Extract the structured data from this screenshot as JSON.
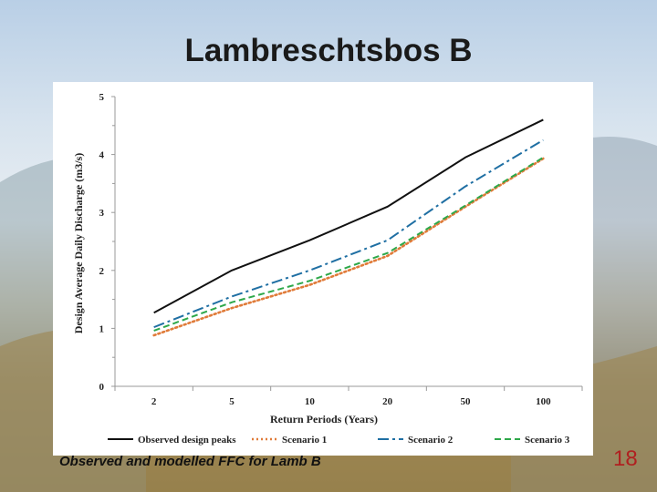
{
  "slide": {
    "title": "Lambreschtsbos B",
    "caption": "Observed and modelled FFC for Lamb B",
    "page_number": "18"
  },
  "chart_data": {
    "type": "line",
    "title": "",
    "xlabel": "Return Periods (Years)",
    "ylabel": "Design Average  Daily Discharge (m3/s)",
    "categories": [
      "2",
      "5",
      "10",
      "20",
      "50",
      "100"
    ],
    "ylim": [
      0,
      5
    ],
    "yticks": [
      "0",
      "1",
      "2",
      "3",
      "4",
      "5"
    ],
    "series": [
      {
        "name": "Observed design peaks",
        "values": [
          1.27,
          2.0,
          2.52,
          3.1,
          3.95,
          4.6
        ],
        "color": "#111111",
        "dash": "solid"
      },
      {
        "name": "Scenario 1",
        "values": [
          0.88,
          1.35,
          1.75,
          2.25,
          3.1,
          3.93
        ],
        "color": "#e07b39",
        "dash": "dot"
      },
      {
        "name": "Scenario 2",
        "values": [
          1.02,
          1.55,
          2.0,
          2.52,
          3.45,
          4.25
        ],
        "color": "#1f6fa3",
        "dash": "dashdot"
      },
      {
        "name": "Scenario 3",
        "values": [
          0.96,
          1.45,
          1.82,
          2.3,
          3.12,
          3.95
        ],
        "color": "#2ea84a",
        "dash": "dash"
      }
    ],
    "legend_position": "bottom"
  }
}
